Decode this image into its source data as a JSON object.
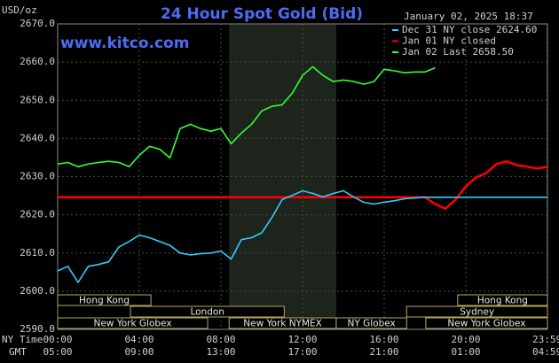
{
  "chart_data": {
    "type": "line",
    "title": "24 Hour Spot Gold (Bid)",
    "unit_label": "USD/oz",
    "timestamp": "January 02, 2025 18:37",
    "source": "www.kitco.com",
    "x_axis_label": "NY Time",
    "x2_axis_label": "GMT",
    "x": [
      0,
      0.5,
      1,
      1.5,
      2,
      2.5,
      3,
      3.5,
      4,
      4.5,
      5,
      5.5,
      6,
      6.5,
      7,
      7.5,
      8,
      8.5,
      9,
      9.5,
      10,
      10.5,
      11,
      11.5,
      12,
      12.5,
      13,
      13.5,
      14,
      14.5,
      15,
      15.5,
      16,
      16.5,
      17,
      17.5,
      18,
      18.5,
      19,
      19.5,
      20,
      20.5,
      21,
      21.5,
      22,
      22.5,
      23,
      23.5,
      24
    ],
    "series": [
      {
        "name": "Dec 31 NY close 2624.60",
        "color": "#33ccff",
        "values": [
          2605.3,
          2606.5,
          2602.3,
          2606.5,
          2607,
          2607.7,
          2611.6,
          2613,
          2614.7,
          2614,
          2613,
          2612,
          2610,
          2609.5,
          2609.8,
          2610,
          2610.5,
          2608.4,
          2613.5,
          2614,
          2615.3,
          2619.3,
          2624,
          2625.1,
          2626.3,
          2625.6,
          2624.7,
          2625.6,
          2626.3,
          2624.7,
          2623.3,
          2622.8,
          2623.3,
          2623.7,
          2624.2,
          2624.4,
          2624.6,
          2624.6,
          2624.6,
          2624.6,
          2624.6,
          2624.6,
          2624.6,
          2624.6,
          2624.6,
          2624.6,
          2624.6,
          2624.6,
          2624.6
        ]
      },
      {
        "name": "Jan 01 NY closed",
        "color": "#ff0000",
        "values": [
          2624.6,
          2624.6,
          2624.6,
          2624.6,
          2624.6,
          2624.6,
          2624.6,
          2624.6,
          2624.6,
          2624.6,
          2624.6,
          2624.6,
          2624.6,
          2624.6,
          2624.6,
          2624.6,
          2624.6,
          2624.6,
          2624.6,
          2624.6,
          2624.6,
          2624.6,
          2624.6,
          2624.6,
          2624.6,
          2624.6,
          2624.6,
          2624.6,
          2624.6,
          2624.6,
          2624.6,
          2624.6,
          2624.6,
          2624.6,
          2624.6,
          2624.6,
          2624.6,
          2622.8,
          2621.6,
          2624,
          2627.4,
          2629.8,
          2630.9,
          2633.3,
          2634,
          2633,
          2632.6,
          2632.1,
          2632.6
        ]
      },
      {
        "name": "Jan 02 Last 2658.50",
        "color": "#33ff33",
        "values": [
          2633.3,
          2633.7,
          2632.6,
          2633.3,
          2633.7,
          2634,
          2633.7,
          2632.6,
          2635.6,
          2637.9,
          2637.2,
          2634.9,
          2642.6,
          2643.7,
          2642.6,
          2641.9,
          2642.6,
          2638.6,
          2641.4,
          2643.7,
          2647.2,
          2648.4,
          2648.8,
          2651.9,
          2656.5,
          2658.8,
          2656.5,
          2654.9,
          2655.3,
          2654.9,
          2654.2,
          2654.9,
          2658.1,
          2657.7,
          2657.2,
          2657.4,
          2657.4,
          2658.5,
          null,
          null,
          null,
          null,
          null,
          null,
          null,
          null,
          null,
          null,
          null
        ]
      }
    ],
    "xlim": [
      0,
      24
    ],
    "ylim": [
      2590,
      2670
    ],
    "yticks": [
      {
        "value": 2590,
        "label": "2590.0"
      },
      {
        "value": 2600,
        "label": "2600.0"
      },
      {
        "value": 2610,
        "label": "2610.0"
      },
      {
        "value": 2620,
        "label": "2620.0"
      },
      {
        "value": 2630,
        "label": "2630.0"
      },
      {
        "value": 2640,
        "label": "2640.0"
      },
      {
        "value": 2650,
        "label": "2650.0"
      },
      {
        "value": 2660,
        "label": "2660.0"
      },
      {
        "value": 2670,
        "label": "2670.0"
      }
    ],
    "xticks": [
      {
        "value": 0,
        "label": "00:00"
      },
      {
        "value": 4,
        "label": "04:00"
      },
      {
        "value": 8,
        "label": "08:00"
      },
      {
        "value": 12,
        "label": "12:00"
      },
      {
        "value": 16,
        "label": "16:00"
      },
      {
        "value": 20,
        "label": "20:00"
      },
      {
        "value": 23.983,
        "label": "23:59"
      }
    ],
    "x2ticks": [
      {
        "value": 0,
        "label": "05:00"
      },
      {
        "value": 4,
        "label": "09:00"
      },
      {
        "value": 8,
        "label": "13:00"
      },
      {
        "value": 12,
        "label": "17:00"
      },
      {
        "value": 16,
        "label": "21:00"
      },
      {
        "value": 20,
        "label": "01:00"
      },
      {
        "value": 23.983,
        "label": "04:59"
      }
    ],
    "grid": true,
    "sessions": [
      {
        "label": "Hong Kong",
        "start": 0,
        "end": 4.57
      },
      {
        "label": "Hong Kong",
        "start": 19.6,
        "end": 24
      },
      {
        "label": "London",
        "start": 3.57,
        "end": 11.1
      },
      {
        "label": "Sydney",
        "start": 17.1,
        "end": 24
      },
      {
        "label": "New York Globex",
        "start": 0,
        "end": 7.35
      },
      {
        "label": "New York NYMEX",
        "start": 8.4,
        "end": 13.65
      },
      {
        "label": "NY Globex",
        "start": 13.65,
        "end": 17.1
      },
      {
        "label": "New York Globex",
        "start": 18.04,
        "end": 24
      }
    ]
  }
}
